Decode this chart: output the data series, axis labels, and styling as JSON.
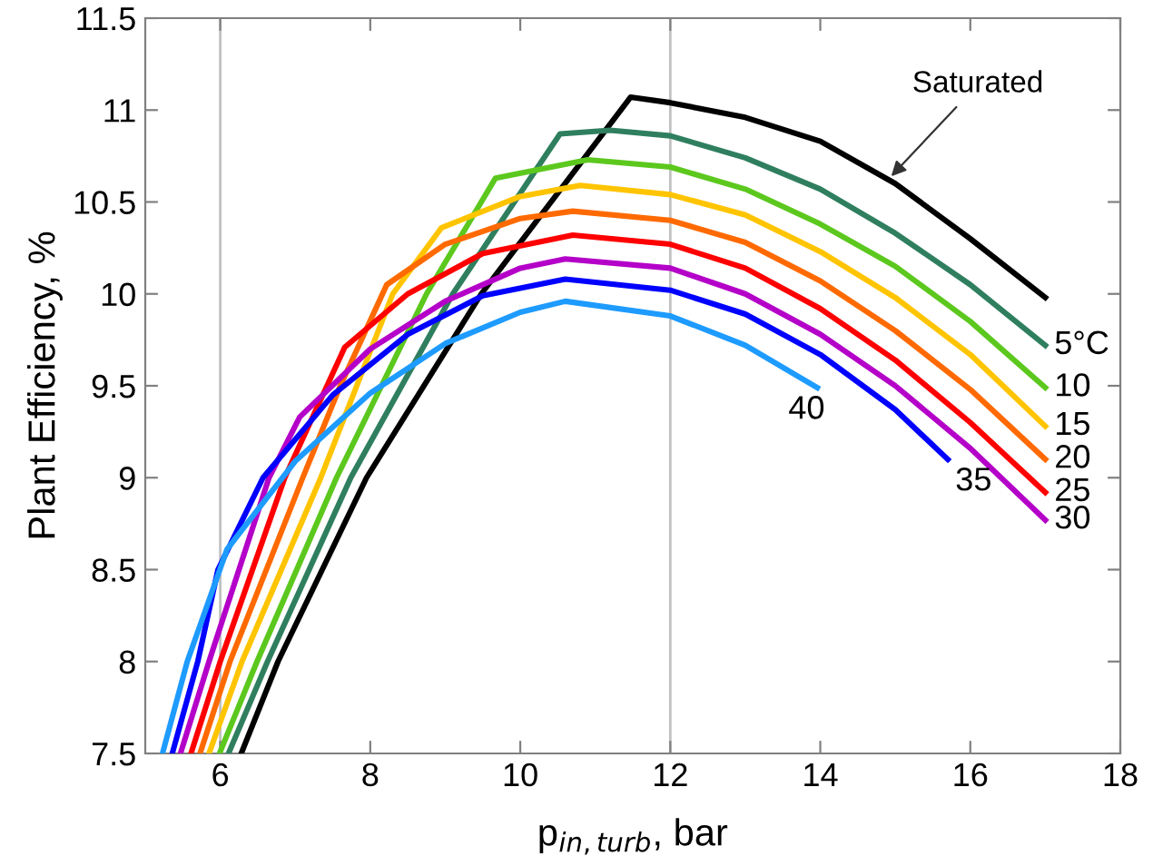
{
  "chart_data": {
    "type": "line",
    "xlabel": "p$_{in,turb}$, bar",
    "ylabel": "Plant Efficiency, %",
    "xlim": [
      5,
      18
    ],
    "xticks": [
      6,
      8,
      10,
      12,
      14,
      16,
      18
    ],
    "ylim": [
      7.5,
      11.5
    ],
    "yticks": [
      7.5,
      8,
      8.5,
      9,
      9.5,
      10,
      10.5,
      11,
      11.5
    ],
    "grid": false,
    "legend": false,
    "marker": "none",
    "line_style": "solid",
    "ref_lines": [
      {
        "axis": "x",
        "value": 6,
        "color": "#c0c0c0"
      },
      {
        "axis": "x",
        "value": 12,
        "color": "#c0c0c0"
      }
    ],
    "annotations": [
      {
        "text": "Saturated",
        "x": 14.9,
        "y": 10.62
      }
    ],
    "series": [
      {
        "color": "#000000",
        "x": [
          6.28,
          6.77,
          7.95,
          9.48,
          11.47,
          12,
          13,
          14,
          15,
          16,
          17
        ],
        "values": [
          7.5,
          8,
          9,
          10,
          11.07,
          11.04,
          10.96,
          10.83,
          10.6,
          10.3,
          9.98
        ]
      },
      {
        "name": "5°C",
        "color": "#2f7f5f",
        "x": [
          6.11,
          6.63,
          7.74,
          9.1,
          10.53,
          11.2,
          12,
          13,
          14,
          15,
          16,
          17
        ],
        "values": [
          7.5,
          8,
          9,
          10,
          10.87,
          10.89,
          10.86,
          10.74,
          10.57,
          10.33,
          10.05,
          9.72
        ]
      },
      {
        "name": "10",
        "color": "#5cc81e",
        "x": [
          5.99,
          6.49,
          7.55,
          8.75,
          9.67,
          10.9,
          12,
          13,
          14,
          15,
          16,
          17
        ],
        "values": [
          7.5,
          8,
          9,
          10,
          10.63,
          10.73,
          10.69,
          10.57,
          10.38,
          10.15,
          9.85,
          9.49
        ]
      },
      {
        "name": "15",
        "color": "#ffc400",
        "x": [
          5.85,
          6.29,
          7.34,
          8.3,
          8.95,
          10,
          10.8,
          12,
          13,
          14,
          15,
          16,
          17
        ],
        "values": [
          7.5,
          8,
          9,
          10,
          10.36,
          10.53,
          10.59,
          10.54,
          10.43,
          10.23,
          9.98,
          9.67,
          9.28
        ]
      },
      {
        "name": "20",
        "color": "#ff6a00",
        "x": [
          5.73,
          6.13,
          7.1,
          7.6,
          8.22,
          9,
          10,
          10.7,
          12,
          13,
          14,
          15,
          16,
          17
        ],
        "values": [
          7.5,
          8,
          9,
          9.5,
          10.05,
          10.27,
          10.41,
          10.45,
          10.4,
          10.28,
          10.07,
          9.8,
          9.48,
          9.1
        ]
      },
      {
        "name": "25",
        "color": "#ff0000",
        "x": [
          5.61,
          6,
          6.86,
          7.66,
          8.5,
          9.5,
          10.7,
          12,
          13,
          14,
          15,
          16,
          17
        ],
        "values": [
          7.5,
          8,
          9,
          9.71,
          10,
          10.22,
          10.32,
          10.27,
          10.14,
          9.92,
          9.64,
          9.3,
          8.92
        ]
      },
      {
        "name": "30",
        "color": "#b400c8",
        "x": [
          5.47,
          5.85,
          6.65,
          7.06,
          8,
          9,
          10,
          10.6,
          12,
          13,
          14,
          15,
          16,
          17
        ],
        "values": [
          7.5,
          8,
          9,
          9.33,
          9.7,
          9.96,
          10.14,
          10.19,
          10.14,
          10,
          9.78,
          9.5,
          9.16,
          8.77
        ]
      },
      {
        "name": "35",
        "color": "#0000ff",
        "x": [
          5.36,
          5.7,
          5.97,
          6.57,
          7.5,
          8.5,
          9.5,
          10.6,
          12,
          13,
          14,
          15,
          15.7
        ],
        "values": [
          7.5,
          8,
          8.5,
          9,
          9.45,
          9.78,
          9.99,
          10.08,
          10.02,
          9.89,
          9.67,
          9.37,
          9.1
        ]
      },
      {
        "name": "40",
        "color": "#1e9bff",
        "x": [
          5.23,
          5.56,
          6.09,
          7,
          8,
          9,
          10,
          10.6,
          12,
          13,
          13.96
        ],
        "values": [
          7.5,
          8,
          8.61,
          9.09,
          9.46,
          9.73,
          9.9,
          9.96,
          9.88,
          9.72,
          9.49
        ]
      }
    ]
  }
}
